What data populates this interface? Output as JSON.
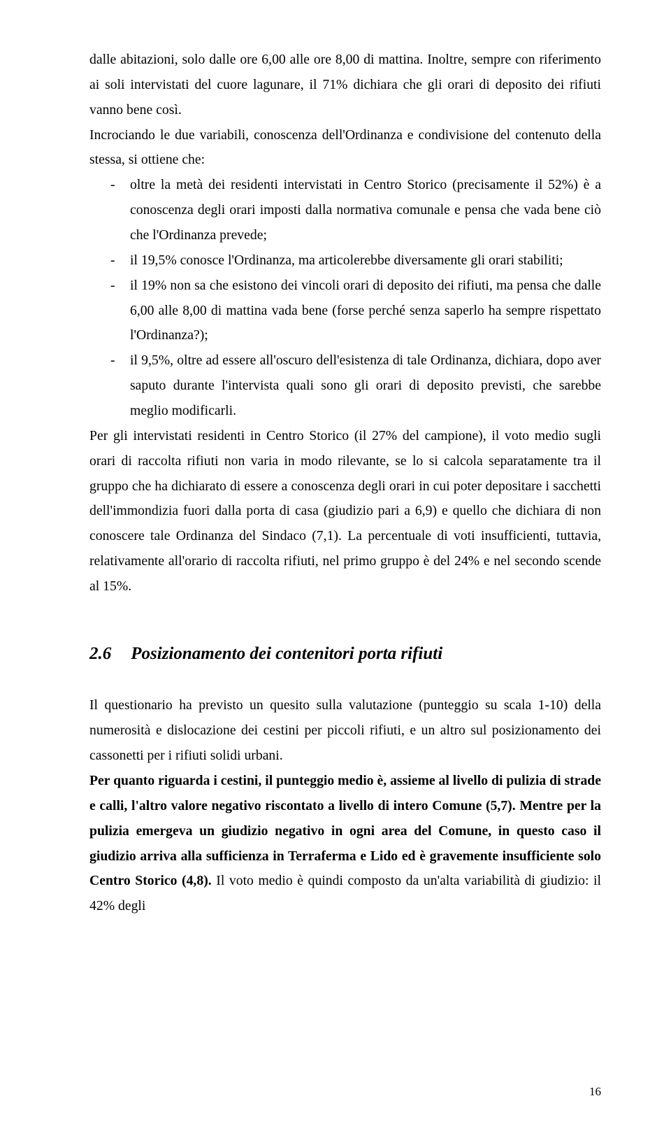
{
  "intro": {
    "p1": "dalle abitazioni, solo dalle ore 6,00 alle ore 8,00 di mattina. Inoltre, sempre con riferimento ai soli intervistati del cuore lagunare, il 71% dichiara che gli orari di deposito dei rifiuti vanno bene così.",
    "p2": "Incrociando le due variabili, conoscenza dell'Ordinanza e condivisione del contenuto della stessa, si ottiene che:"
  },
  "bullets": [
    "oltre la metà dei residenti intervistati in Centro Storico (precisamente il 52%) è a conoscenza degli orari imposti dalla normativa comunale e pensa che vada bene ciò che l'Ordinanza prevede;",
    "il 19,5% conosce l'Ordinanza, ma articolerebbe diversamente gli orari stabiliti;",
    "il 19% non sa che esistono dei vincoli orari di deposito dei rifiuti, ma pensa che dalle 6,00 alle 8,00 di mattina vada bene (forse perché senza saperlo ha sempre rispettato l'Ordinanza?);",
    "il 9,5%, oltre ad essere all'oscuro dell'esistenza di tale Ordinanza, dichiara, dopo aver saputo durante l'intervista quali sono gli orari di deposito previsti, che sarebbe meglio modificarli."
  ],
  "after_bullets": "Per gli intervistati residenti in Centro Storico (il 27% del campione), il voto medio sugli orari di raccolta rifiuti non varia in modo rilevante, se lo si calcola separatamente tra il gruppo che ha dichiarato di essere a conoscenza degli orari in cui poter depositare i sacchetti dell'immondizia fuori dalla porta di casa (giudizio pari a 6,9) e quello che dichiara di non conoscere tale Ordinanza del Sindaco (7,1). La percentuale di voti insufficienti, tuttavia, relativamente all'orario di raccolta rifiuti, nel primo gruppo è del 24% e nel secondo scende al 15%.",
  "section": {
    "number": "2.6",
    "title": "Posizionamento dei contenitori porta rifiuti"
  },
  "section_body": {
    "p1": "Il questionario ha previsto un quesito sulla valutazione (punteggio su scala 1-10) della numerosità e dislocazione dei cestini per piccoli rifiuti, e un altro sul posizionamento dei cassonetti per i rifiuti solidi urbani.",
    "p2_bold_a": "Per quanto riguarda i cestini, il punteggio medio è, assieme al livello di pulizia di strade e calli, l'altro valore negativo riscontato a livello di intero Comune (5,7). Mentre per la pulizia emergeva un giudizio negativo in ogni area del Comune, in questo caso il giudizio arriva alla sufficienza in Terraferma e Lido ed è gravemente insufficiente solo Centro Storico (4,8).",
    "p2_rest": " Il voto medio è quindi composto da un'alta variabilità di giudizio: il 42% degli"
  },
  "page_number": "16"
}
